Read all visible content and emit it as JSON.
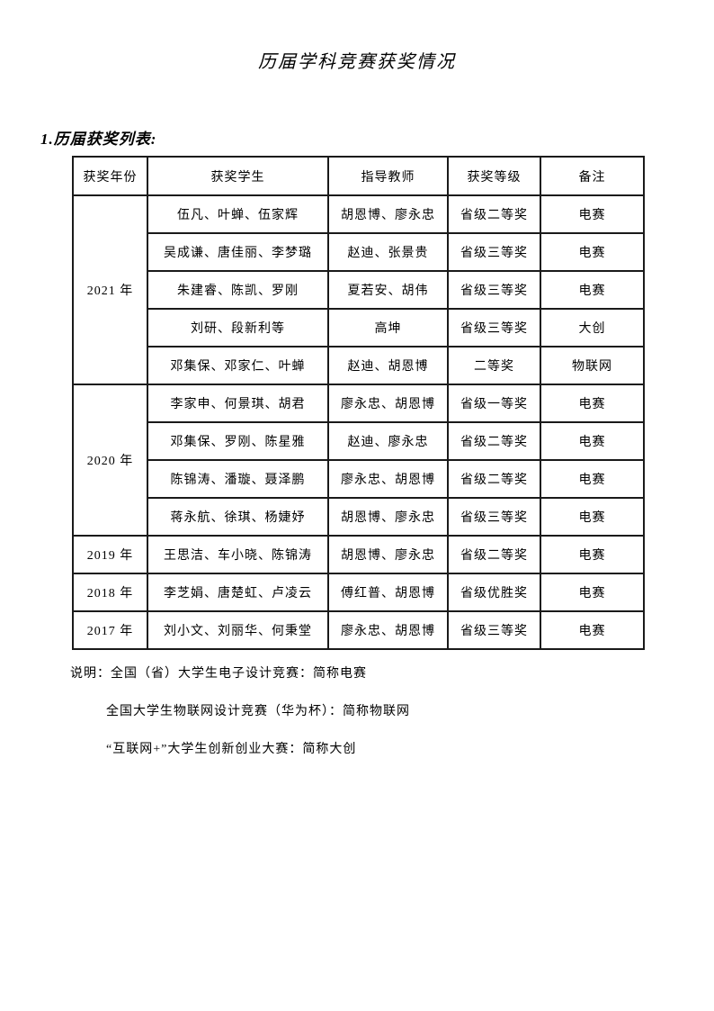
{
  "page": {
    "title": "历届学科竞赛获奖情况",
    "section_heading": "1.历届获奖列表:"
  },
  "table": {
    "headers": [
      "获奖年份",
      "获奖学生",
      "指导教师",
      "获奖等级",
      "备注"
    ],
    "groups": [
      {
        "year": "2021 年",
        "rows": [
          {
            "students": "伍凡、叶蝉、伍家辉",
            "teachers": "胡恩博、廖永忠",
            "award": "省级二等奖",
            "note": "电赛"
          },
          {
            "students": "吴成谦、唐佳丽、李梦璐",
            "teachers": "赵迪、张景贵",
            "award": "省级三等奖",
            "note": "电赛"
          },
          {
            "students": "朱建睿、陈凯、罗刚",
            "teachers": "夏若安、胡伟",
            "award": "省级三等奖",
            "note": "电赛"
          },
          {
            "students": "刘研、段新利等",
            "teachers": "高坤",
            "award": "省级三等奖",
            "note": "大创"
          },
          {
            "students": "邓集保、邓家仁、叶蝉",
            "teachers": "赵迪、胡恩博",
            "award": "二等奖",
            "note": "物联网"
          }
        ]
      },
      {
        "year": "2020 年",
        "rows": [
          {
            "students": "李家申、何景琪、胡君",
            "teachers": "廖永忠、胡恩博",
            "award": "省级一等奖",
            "note": "电赛"
          },
          {
            "students": "邓集保、罗刚、陈星雅",
            "teachers": "赵迪、廖永忠",
            "award": "省级二等奖",
            "note": "电赛"
          },
          {
            "students": "陈锦涛、潘璇、聂泽鹏",
            "teachers": "廖永忠、胡恩博",
            "award": "省级二等奖",
            "note": "电赛"
          },
          {
            "students": "蒋永航、徐琪、杨婕妤",
            "teachers": "胡恩博、廖永忠",
            "award": "省级三等奖",
            "note": "电赛"
          }
        ]
      },
      {
        "year": "2019 年",
        "rows": [
          {
            "students": "王思洁、车小晓、陈锦涛",
            "teachers": "胡恩博、廖永忠",
            "award": "省级二等奖",
            "note": "电赛"
          }
        ]
      },
      {
        "year": "2018 年",
        "rows": [
          {
            "students": "李芝娟、唐楚虹、卢凌云",
            "teachers": "傅红普、胡恩博",
            "award": "省级优胜奖",
            "note": "电赛"
          }
        ]
      },
      {
        "year": "2017 年",
        "rows": [
          {
            "students": "刘小文、刘丽华、何秉堂",
            "teachers": "廖永忠、胡恩博",
            "award": "省级三等奖",
            "note": "电赛"
          }
        ]
      }
    ]
  },
  "notes": {
    "label": "说明：",
    "lines": [
      "全国（省）大学生电子设计竞赛：简称电赛",
      "全国大学生物联网设计竞赛（华为杯）：简称物联网",
      "“互联网+”大学生创新创业大赛：简称大创"
    ]
  }
}
